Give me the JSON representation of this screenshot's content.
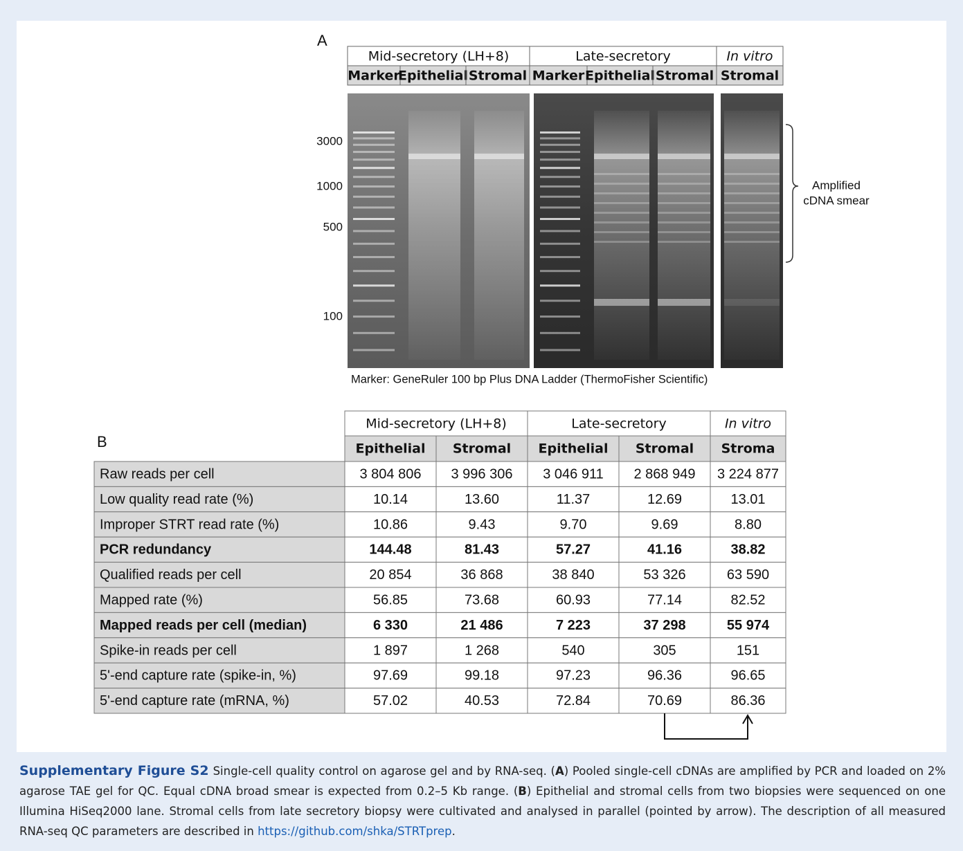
{
  "panel_a": {
    "label": "A",
    "groups": [
      "Mid-secretory (LH+8)",
      "Late-secretory",
      "In vitro"
    ],
    "lanes": [
      "Marker",
      "Epithelial",
      "Stromal",
      "Marker",
      "Epithelial",
      "Stromal",
      "Stromal"
    ],
    "size_markers": [
      "3000",
      "1000",
      "500",
      "100"
    ],
    "annotation": [
      "Amplified",
      "cDNA smear"
    ],
    "footnote": "Marker: GeneRuler  100 bp Plus DNA Ladder  (ThermoFisher Scientific)"
  },
  "panel_b": {
    "label": "B",
    "groups": [
      "Mid-secretory (LH+8)",
      "Late-secretory",
      "In vitro"
    ],
    "columns": [
      "Epithelial",
      "Stromal",
      "Epithelial",
      "Stromal",
      "Stroma"
    ],
    "rows": [
      {
        "label": "Raw reads per cell",
        "values": [
          "3 804 806",
          "3 996 306",
          "3 046 911",
          "2 868 949",
          "3 224 877"
        ]
      },
      {
        "label": "Low quality read rate (%)",
        "values": [
          "10.14",
          "13.60",
          "11.37",
          "12.69",
          "13.01"
        ]
      },
      {
        "label": "Improper STRT read rate (%)",
        "values": [
          "10.86",
          "9.43",
          "9.70",
          "9.69",
          "8.80"
        ]
      },
      {
        "label": "PCR redundancy",
        "values": [
          "144.48",
          "81.43",
          "57.27",
          "41.16",
          "38.82"
        ],
        "highlight": true
      },
      {
        "label": "Qualified reads per cell",
        "values": [
          "20 854",
          "36 868",
          "38 840",
          "53 326",
          "63 590"
        ]
      },
      {
        "label": "Mapped rate (%)",
        "values": [
          "56.85",
          "73.68",
          "60.93",
          "77.14",
          "82.52"
        ]
      },
      {
        "label": "Mapped reads per cell (median)",
        "values": [
          "6 330",
          "21 486",
          "7 223",
          "37 298",
          "55 974"
        ],
        "highlight": true
      },
      {
        "label": "Spike-in reads per cell",
        "values": [
          "1 897",
          "1 268",
          "540",
          "305",
          "151"
        ]
      },
      {
        "label": "5'-end capture rate (spike-in, %)",
        "values": [
          "97.69",
          "99.18",
          "97.23",
          "96.36",
          "96.65"
        ]
      },
      {
        "label": "5'-end capture rate (mRNA, %)",
        "values": [
          "57.02",
          "40.53",
          "72.84",
          "70.69",
          "86.36"
        ]
      }
    ]
  },
  "caption": {
    "title": "Supplementary Figure S2",
    "segments": [
      {
        "text": "Single-cell quality control on agarose gel and by RNA-seq. ("
      },
      {
        "text": "A",
        "bold": true
      },
      {
        "text": ") Pooled single-cell cDNAs are amplified by PCR and loaded on 2% agarose TAE gel for QC. Equal cDNA broad smear is expected from 0.2–5 Kb range. ("
      },
      {
        "text": "B",
        "bold": true
      },
      {
        "text": ") Epithelial and stromal cells from two biopsies were sequenced on one Illumina HiSeq2000 lane. Stromal cells from late secretory biopsy were cultivated and analysed in parallel (pointed by arrow). The description of all measured RNA-seq QC parameters are described in "
      },
      {
        "text": "https://github.com/shka/STRTprep",
        "link": true
      },
      {
        "text": "."
      }
    ]
  }
}
